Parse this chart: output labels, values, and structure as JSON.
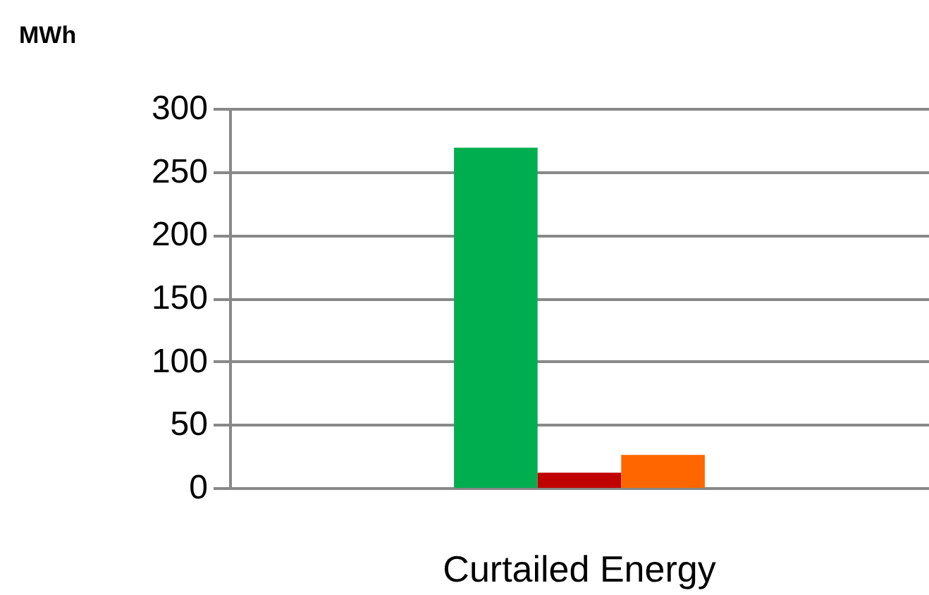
{
  "chart_data": {
    "type": "bar",
    "ylabel": "MWh",
    "categories": [
      "Curtailed Energy"
    ],
    "series": [
      {
        "color": "#00ae4f",
        "values": [
          269
        ]
      },
      {
        "color": "#c00000",
        "values": [
          12
        ]
      },
      {
        "color": "#ff6600",
        "values": [
          26
        ]
      }
    ],
    "ylim": [
      0,
      300
    ],
    "yticks": [
      0,
      50,
      100,
      150,
      200,
      250,
      300
    ],
    "grid": "y"
  }
}
